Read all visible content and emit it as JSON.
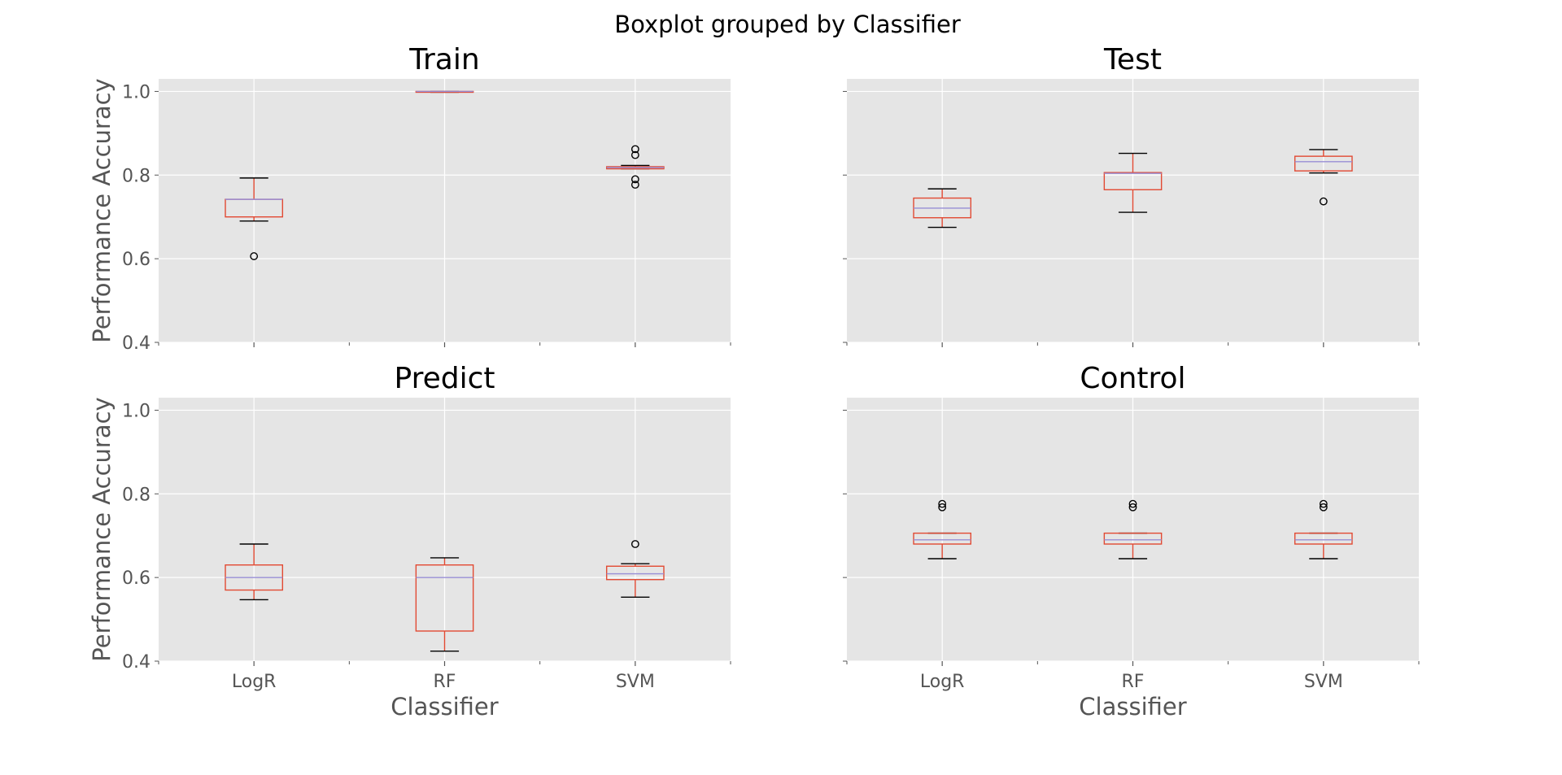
{
  "figure": {
    "suptitle": "Boxplot grouped by Classifier",
    "background": "#ffffff",
    "panel_background": "#e5e5e5",
    "grid_color": "#ffffff",
    "box_color": "#e24a33",
    "median_color": "#988ed5",
    "whisker_color": "#e24a33",
    "cap_color": "#000000",
    "flier_color": "#000000",
    "text_color": "#555555",
    "title_color": "#000000"
  },
  "chart_data": [
    {
      "type": "box",
      "title": "Train",
      "xlabel": "",
      "ylabel": "Performance Accuracy",
      "ylim": [
        0.4,
        1.03
      ],
      "yticks": [
        0.4,
        0.6,
        0.8,
        1.0
      ],
      "ytick_labels": [
        "0.4",
        "0.6",
        "0.8",
        "1.0"
      ],
      "categories": [
        "LogR",
        "RF",
        "SVM"
      ],
      "show_xtick_labels": false,
      "show_ytick_labels": true,
      "grid": true,
      "boxes": [
        {
          "category": "LogR",
          "whislo": 0.69,
          "q1": 0.7,
          "med": 0.742,
          "q3": 0.742,
          "whishi": 0.793,
          "fliers": [
            0.606
          ]
        },
        {
          "category": "RF",
          "whislo": 0.998,
          "q1": 0.998,
          "med": 1.0,
          "q3": 1.0,
          "whishi": 1.0,
          "fliers": []
        },
        {
          "category": "SVM",
          "whislo": 0.815,
          "q1": 0.815,
          "med": 0.818,
          "q3": 0.82,
          "whishi": 0.823,
          "fliers": [
            0.777,
            0.79,
            0.848,
            0.862
          ]
        }
      ]
    },
    {
      "type": "box",
      "title": "Test",
      "xlabel": "",
      "ylabel": "",
      "ylim": [
        0.4,
        1.03
      ],
      "yticks": [
        0.4,
        0.6,
        0.8,
        1.0
      ],
      "ytick_labels": [
        "0.4",
        "0.6",
        "0.8",
        "1.0"
      ],
      "categories": [
        "LogR",
        "RF",
        "SVM"
      ],
      "show_xtick_labels": false,
      "show_ytick_labels": false,
      "grid": true,
      "boxes": [
        {
          "category": "LogR",
          "whislo": 0.675,
          "q1": 0.698,
          "med": 0.721,
          "q3": 0.745,
          "whishi": 0.767,
          "fliers": []
        },
        {
          "category": "RF",
          "whislo": 0.711,
          "q1": 0.765,
          "med": 0.804,
          "q3": 0.806,
          "whishi": 0.852,
          "fliers": []
        },
        {
          "category": "SVM",
          "whislo": 0.805,
          "q1": 0.81,
          "med": 0.832,
          "q3": 0.845,
          "whishi": 0.861,
          "fliers": [
            0.737
          ]
        }
      ]
    },
    {
      "type": "box",
      "title": "Predict",
      "xlabel": "Classifier",
      "ylabel": "Performance Accuracy",
      "ylim": [
        0.4,
        1.03
      ],
      "yticks": [
        0.4,
        0.6,
        0.8,
        1.0
      ],
      "ytick_labels": [
        "0.4",
        "0.6",
        "0.8",
        "1.0"
      ],
      "categories": [
        "LogR",
        "RF",
        "SVM"
      ],
      "show_xtick_labels": true,
      "show_ytick_labels": true,
      "grid": true,
      "boxes": [
        {
          "category": "LogR",
          "whislo": 0.547,
          "q1": 0.57,
          "med": 0.6,
          "q3": 0.63,
          "whishi": 0.68,
          "fliers": []
        },
        {
          "category": "RF",
          "whislo": 0.424,
          "q1": 0.472,
          "med": 0.6,
          "q3": 0.63,
          "whishi": 0.647,
          "fliers": []
        },
        {
          "category": "SVM",
          "whislo": 0.553,
          "q1": 0.595,
          "med": 0.609,
          "q3": 0.627,
          "whishi": 0.633,
          "fliers": [
            0.68
          ]
        }
      ]
    },
    {
      "type": "box",
      "title": "Control",
      "xlabel": "Classifier",
      "ylabel": "",
      "ylim": [
        0.4,
        1.03
      ],
      "yticks": [
        0.4,
        0.6,
        0.8,
        1.0
      ],
      "ytick_labels": [
        "0.4",
        "0.6",
        "0.8",
        "1.0"
      ],
      "categories": [
        "LogR",
        "RF",
        "SVM"
      ],
      "show_xtick_labels": true,
      "show_ytick_labels": false,
      "grid": true,
      "boxes": [
        {
          "category": "LogR",
          "whislo": 0.645,
          "q1": 0.68,
          "med": 0.69,
          "q3": 0.706,
          "whishi": 0.706,
          "fliers": [
            0.768,
            0.776
          ]
        },
        {
          "category": "RF",
          "whislo": 0.645,
          "q1": 0.68,
          "med": 0.69,
          "q3": 0.706,
          "whishi": 0.706,
          "fliers": [
            0.768,
            0.776
          ]
        },
        {
          "category": "SVM",
          "whislo": 0.645,
          "q1": 0.68,
          "med": 0.69,
          "q3": 0.706,
          "whishi": 0.706,
          "fliers": [
            0.768,
            0.776
          ]
        }
      ]
    }
  ]
}
